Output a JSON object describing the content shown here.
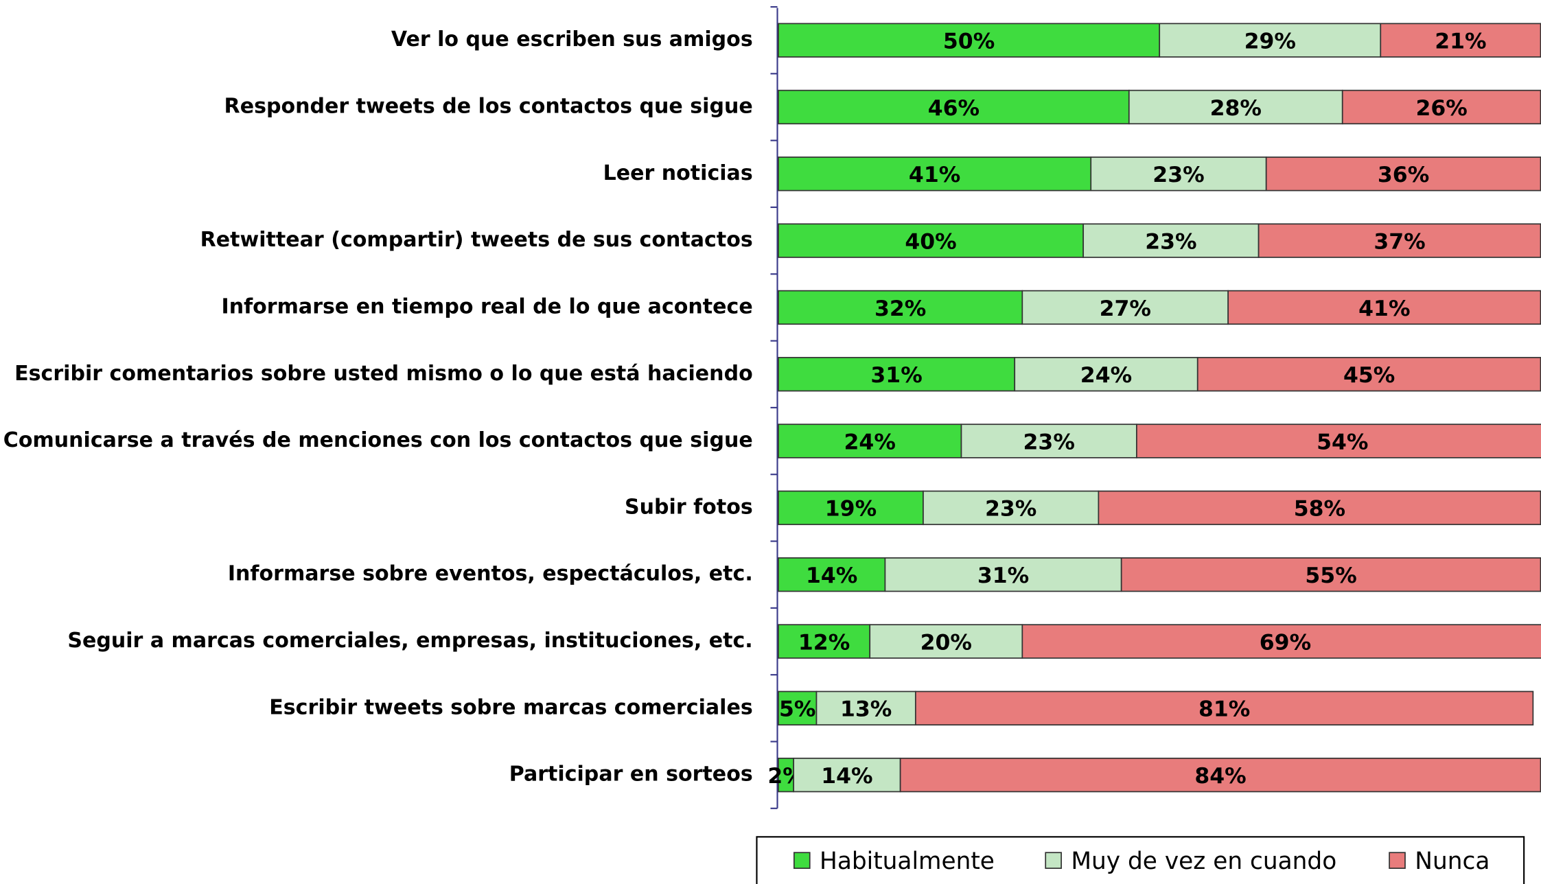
{
  "chart_data": {
    "type": "stacked-bar-horizontal",
    "categories": [
      "Ver lo que escriben sus amigos",
      "Responder tweets de los contactos que sigue",
      "Leer noticias",
      "Retwittear (compartir) tweets de sus contactos",
      "Informarse en tiempo real de lo que acontece",
      "Escribir comentarios sobre usted mismo o lo que está haciendo",
      "Comunicarse a través de menciones con los contactos que sigue",
      "Subir fotos",
      "Informarse sobre eventos, espectáculos, etc.",
      "Seguir a marcas comerciales, empresas, instituciones, etc.",
      "Escribir tweets sobre marcas comerciales",
      "Participar en sorteos"
    ],
    "series": [
      {
        "name": "Habitualmente",
        "color": "#3fdc3f",
        "values": [
          50,
          46,
          41,
          40,
          32,
          31,
          24,
          19,
          14,
          12,
          5,
          2
        ],
        "value_labels": [
          "50%",
          "46%",
          "41%",
          "40%",
          "32%",
          "31%",
          "24%",
          "19%",
          "14%",
          "12%",
          "5%",
          "2%"
        ]
      },
      {
        "name": "Muy de vez en cuando",
        "color": "#c4e6c4",
        "values": [
          29,
          28,
          23,
          23,
          27,
          24,
          23,
          23,
          31,
          20,
          13,
          14
        ],
        "value_labels": [
          "29%",
          "28%",
          "23%",
          "23%",
          "27%",
          "24%",
          "23%",
          "23%",
          "31%",
          "20%",
          "13%",
          "14%"
        ]
      },
      {
        "name": "Nunca",
        "color": "#e87c7c",
        "values": [
          21,
          26,
          36,
          37,
          41,
          45,
          54,
          58,
          55,
          69,
          81,
          84
        ],
        "value_labels": [
          "21%",
          "26%",
          "36%",
          "37%",
          "41%",
          "45%",
          "54%",
          "58%",
          "55%",
          "69%",
          "81%",
          "84%"
        ]
      }
    ],
    "xlim": [
      0,
      100
    ],
    "legend": "bottom"
  }
}
